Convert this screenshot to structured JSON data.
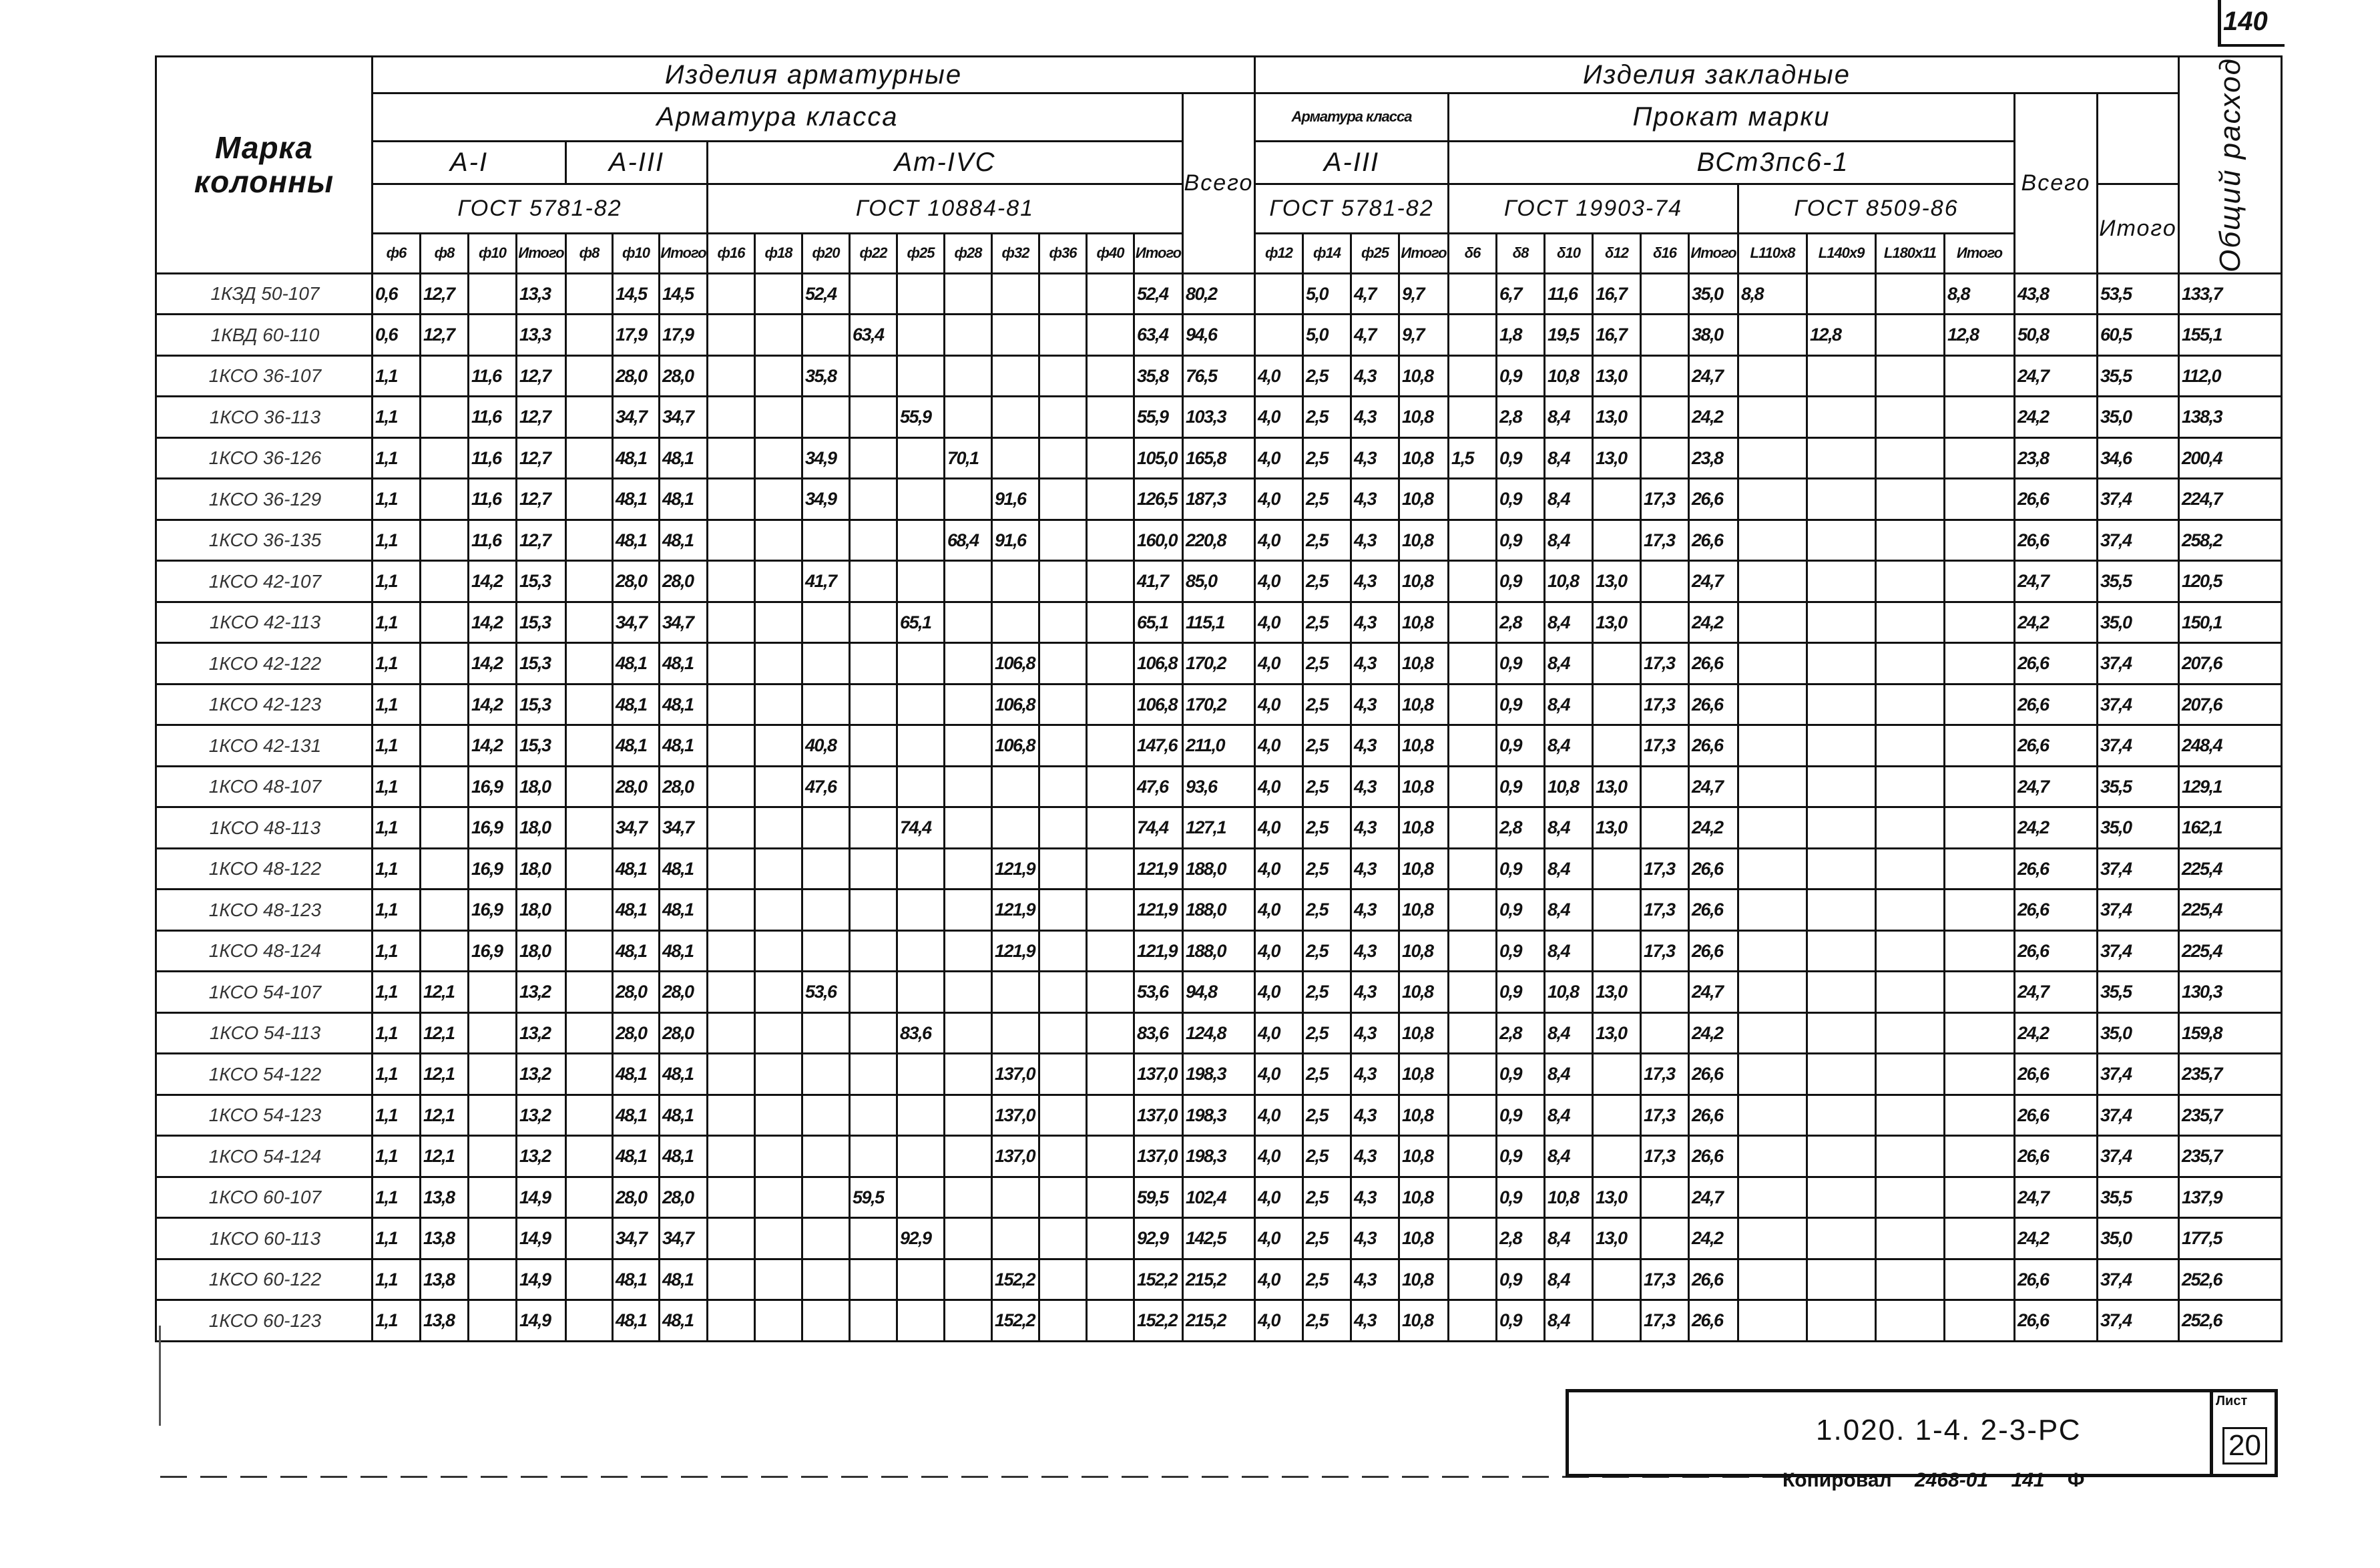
{
  "page_number": "140",
  "header": {
    "marka": "Марка колонны",
    "armature_items": "Изделия арматурные",
    "embedded_items": "Изделия закладные",
    "total_consumption": "Общий расход",
    "armature_class": "Арматура класса",
    "armature_class_emb": "Арматура класса",
    "rolled_steel_grade": "Прокат марки",
    "vsego": "Всего",
    "vsego_emb": "Всего",
    "class_a1": "А-I",
    "class_a3": "А-III",
    "class_at4c": "Ат-IVC",
    "class_a3_emb": "А-III",
    "steel": "ВСт3пс6-1",
    "gost_5781": "ГОСТ 5781-82",
    "gost_10884": "ГОСТ 10884-81",
    "gost_5781_emb": "ГОСТ 5781-82",
    "gost_19903": "ГОСТ 19903-74",
    "gost_8509": "ГОСТ 8509-86",
    "itogo_emb": "Итого",
    "sizes": [
      "ф6",
      "ф8",
      "ф10",
      "Итого",
      "ф8",
      "ф10",
      "Итого",
      "ф16",
      "ф18",
      "ф20",
      "ф22",
      "ф25",
      "ф28",
      "ф32",
      "ф36",
      "ф40",
      "Итого",
      "ф12",
      "ф14",
      "ф25",
      "Итого",
      "δ6",
      "δ8",
      "δ10",
      "δ12",
      "δ16",
      "Итого",
      "L110x8",
      "L140x9",
      "L180x11",
      "Итого"
    ]
  },
  "rows": [
    {
      "marka": "1КЗД 50-107",
      "v": [
        "0,6",
        "12,7",
        "",
        "13,3",
        "",
        "14,5",
        "14,5",
        "",
        "",
        "52,4",
        "",
        "",
        "",
        "",
        "",
        "",
        "52,4",
        "80,2",
        "",
        "5,0",
        "4,7",
        "9,7",
        "",
        "6,7",
        "11,6",
        "16,7",
        "",
        "35,0",
        "8,8",
        "",
        "",
        "8,8",
        "43,8",
        "53,5",
        "133,7"
      ]
    },
    {
      "marka": "1КВД 60-110",
      "v": [
        "0,6",
        "12,7",
        "",
        "13,3",
        "",
        "17,9",
        "17,9",
        "",
        "",
        "",
        "63,4",
        "",
        "",
        "",
        "",
        "",
        "63,4",
        "94,6",
        "",
        "5,0",
        "4,7",
        "9,7",
        "",
        "1,8",
        "19,5",
        "16,7",
        "",
        "38,0",
        "",
        "12,8",
        "",
        "12,8",
        "50,8",
        "60,5",
        "155,1"
      ]
    },
    {
      "marka": "1КСО 36-107",
      "v": [
        "1,1",
        "",
        "11,6",
        "12,7",
        "",
        "28,0",
        "28,0",
        "",
        "",
        "35,8",
        "",
        "",
        "",
        "",
        "",
        "",
        "35,8",
        "76,5",
        "4,0",
        "2,5",
        "4,3",
        "10,8",
        "",
        "0,9",
        "10,8",
        "13,0",
        "",
        "24,7",
        "",
        "",
        "",
        "",
        "24,7",
        "35,5",
        "112,0"
      ]
    },
    {
      "marka": "1КСО 36-113",
      "v": [
        "1,1",
        "",
        "11,6",
        "12,7",
        "",
        "34,7",
        "34,7",
        "",
        "",
        "",
        "",
        "55,9",
        "",
        "",
        "",
        "",
        "55,9",
        "103,3",
        "4,0",
        "2,5",
        "4,3",
        "10,8",
        "",
        "2,8",
        "8,4",
        "13,0",
        "",
        "24,2",
        "",
        "",
        "",
        "",
        "24,2",
        "35,0",
        "138,3"
      ]
    },
    {
      "marka": "1КСО 36-126",
      "v": [
        "1,1",
        "",
        "11,6",
        "12,7",
        "",
        "48,1",
        "48,1",
        "",
        "",
        "34,9",
        "",
        "",
        "70,1",
        "",
        "",
        "",
        "105,0",
        "165,8",
        "4,0",
        "2,5",
        "4,3",
        "10,8",
        "1,5",
        "0,9",
        "8,4",
        "13,0",
        "",
        "23,8",
        "",
        "",
        "",
        "",
        "23,8",
        "34,6",
        "200,4"
      ]
    },
    {
      "marka": "1КСО 36-129",
      "v": [
        "1,1",
        "",
        "11,6",
        "12,7",
        "",
        "48,1",
        "48,1",
        "",
        "",
        "34,9",
        "",
        "",
        "",
        "91,6",
        "",
        "",
        "126,5",
        "187,3",
        "4,0",
        "2,5",
        "4,3",
        "10,8",
        "",
        "0,9",
        "8,4",
        "",
        "17,3",
        "26,6",
        "",
        "",
        "",
        "",
        "26,6",
        "37,4",
        "224,7"
      ]
    },
    {
      "marka": "1КСО 36-135",
      "v": [
        "1,1",
        "",
        "11,6",
        "12,7",
        "",
        "48,1",
        "48,1",
        "",
        "",
        "",
        "",
        "",
        "68,4",
        "91,6",
        "",
        "",
        "160,0",
        "220,8",
        "4,0",
        "2,5",
        "4,3",
        "10,8",
        "",
        "0,9",
        "8,4",
        "",
        "17,3",
        "26,6",
        "",
        "",
        "",
        "",
        "26,6",
        "37,4",
        "258,2"
      ]
    },
    {
      "marka": "1КСО 42-107",
      "v": [
        "1,1",
        "",
        "14,2",
        "15,3",
        "",
        "28,0",
        "28,0",
        "",
        "",
        "41,7",
        "",
        "",
        "",
        "",
        "",
        "",
        "41,7",
        "85,0",
        "4,0",
        "2,5",
        "4,3",
        "10,8",
        "",
        "0,9",
        "10,8",
        "13,0",
        "",
        "24,7",
        "",
        "",
        "",
        "",
        "24,7",
        "35,5",
        "120,5"
      ]
    },
    {
      "marka": "1КСО 42-113",
      "v": [
        "1,1",
        "",
        "14,2",
        "15,3",
        "",
        "34,7",
        "34,7",
        "",
        "",
        "",
        "",
        "65,1",
        "",
        "",
        "",
        "",
        "65,1",
        "115,1",
        "4,0",
        "2,5",
        "4,3",
        "10,8",
        "",
        "2,8",
        "8,4",
        "13,0",
        "",
        "24,2",
        "",
        "",
        "",
        "",
        "24,2",
        "35,0",
        "150,1"
      ]
    },
    {
      "marka": "1КСО 42-122",
      "v": [
        "1,1",
        "",
        "14,2",
        "15,3",
        "",
        "48,1",
        "48,1",
        "",
        "",
        "",
        "",
        "",
        "",
        "106,8",
        "",
        "",
        "106,8",
        "170,2",
        "4,0",
        "2,5",
        "4,3",
        "10,8",
        "",
        "0,9",
        "8,4",
        "",
        "17,3",
        "26,6",
        "",
        "",
        "",
        "",
        "26,6",
        "37,4",
        "207,6"
      ]
    },
    {
      "marka": "1КСО 42-123",
      "v": [
        "1,1",
        "",
        "14,2",
        "15,3",
        "",
        "48,1",
        "48,1",
        "",
        "",
        "",
        "",
        "",
        "",
        "106,8",
        "",
        "",
        "106,8",
        "170,2",
        "4,0",
        "2,5",
        "4,3",
        "10,8",
        "",
        "0,9",
        "8,4",
        "",
        "17,3",
        "26,6",
        "",
        "",
        "",
        "",
        "26,6",
        "37,4",
        "207,6"
      ]
    },
    {
      "marka": "1КСО 42-131",
      "v": [
        "1,1",
        "",
        "14,2",
        "15,3",
        "",
        "48,1",
        "48,1",
        "",
        "",
        "40,8",
        "",
        "",
        "",
        "106,8",
        "",
        "",
        "147,6",
        "211,0",
        "4,0",
        "2,5",
        "4,3",
        "10,8",
        "",
        "0,9",
        "8,4",
        "",
        "17,3",
        "26,6",
        "",
        "",
        "",
        "",
        "26,6",
        "37,4",
        "248,4"
      ]
    },
    {
      "marka": "1КСО 48-107",
      "v": [
        "1,1",
        "",
        "16,9",
        "18,0",
        "",
        "28,0",
        "28,0",
        "",
        "",
        "47,6",
        "",
        "",
        "",
        "",
        "",
        "",
        "47,6",
        "93,6",
        "4,0",
        "2,5",
        "4,3",
        "10,8",
        "",
        "0,9",
        "10,8",
        "13,0",
        "",
        "24,7",
        "",
        "",
        "",
        "",
        "24,7",
        "35,5",
        "129,1"
      ]
    },
    {
      "marka": "1КСО 48-113",
      "v": [
        "1,1",
        "",
        "16,9",
        "18,0",
        "",
        "34,7",
        "34,7",
        "",
        "",
        "",
        "",
        "74,4",
        "",
        "",
        "",
        "",
        "74,4",
        "127,1",
        "4,0",
        "2,5",
        "4,3",
        "10,8",
        "",
        "2,8",
        "8,4",
        "13,0",
        "",
        "24,2",
        "",
        "",
        "",
        "",
        "24,2",
        "35,0",
        "162,1"
      ]
    },
    {
      "marka": "1КСО 48-122",
      "v": [
        "1,1",
        "",
        "16,9",
        "18,0",
        "",
        "48,1",
        "48,1",
        "",
        "",
        "",
        "",
        "",
        "",
        "121,9",
        "",
        "",
        "121,9",
        "188,0",
        "4,0",
        "2,5",
        "4,3",
        "10,8",
        "",
        "0,9",
        "8,4",
        "",
        "17,3",
        "26,6",
        "",
        "",
        "",
        "",
        "26,6",
        "37,4",
        "225,4"
      ]
    },
    {
      "marka": "1КСО 48-123",
      "v": [
        "1,1",
        "",
        "16,9",
        "18,0",
        "",
        "48,1",
        "48,1",
        "",
        "",
        "",
        "",
        "",
        "",
        "121,9",
        "",
        "",
        "121,9",
        "188,0",
        "4,0",
        "2,5",
        "4,3",
        "10,8",
        "",
        "0,9",
        "8,4",
        "",
        "17,3",
        "26,6",
        "",
        "",
        "",
        "",
        "26,6",
        "37,4",
        "225,4"
      ]
    },
    {
      "marka": "1КСО 48-124",
      "v": [
        "1,1",
        "",
        "16,9",
        "18,0",
        "",
        "48,1",
        "48,1",
        "",
        "",
        "",
        "",
        "",
        "",
        "121,9",
        "",
        "",
        "121,9",
        "188,0",
        "4,0",
        "2,5",
        "4,3",
        "10,8",
        "",
        "0,9",
        "8,4",
        "",
        "17,3",
        "26,6",
        "",
        "",
        "",
        "",
        "26,6",
        "37,4",
        "225,4"
      ]
    },
    {
      "marka": "1КСО 54-107",
      "v": [
        "1,1",
        "12,1",
        "",
        "13,2",
        "",
        "28,0",
        "28,0",
        "",
        "",
        "53,6",
        "",
        "",
        "",
        "",
        "",
        "",
        "53,6",
        "94,8",
        "4,0",
        "2,5",
        "4,3",
        "10,8",
        "",
        "0,9",
        "10,8",
        "13,0",
        "",
        "24,7",
        "",
        "",
        "",
        "",
        "24,7",
        "35,5",
        "130,3"
      ]
    },
    {
      "marka": "1КСО 54-113",
      "v": [
        "1,1",
        "12,1",
        "",
        "13,2",
        "",
        "28,0",
        "28,0",
        "",
        "",
        "",
        "",
        "83,6",
        "",
        "",
        "",
        "",
        "83,6",
        "124,8",
        "4,0",
        "2,5",
        "4,3",
        "10,8",
        "",
        "2,8",
        "8,4",
        "13,0",
        "",
        "24,2",
        "",
        "",
        "",
        "",
        "24,2",
        "35,0",
        "159,8"
      ]
    },
    {
      "marka": "1КСО 54-122",
      "v": [
        "1,1",
        "12,1",
        "",
        "13,2",
        "",
        "48,1",
        "48,1",
        "",
        "",
        "",
        "",
        "",
        "",
        "137,0",
        "",
        "",
        "137,0",
        "198,3",
        "4,0",
        "2,5",
        "4,3",
        "10,8",
        "",
        "0,9",
        "8,4",
        "",
        "17,3",
        "26,6",
        "",
        "",
        "",
        "",
        "26,6",
        "37,4",
        "235,7"
      ]
    },
    {
      "marka": "1КСО 54-123",
      "v": [
        "1,1",
        "12,1",
        "",
        "13,2",
        "",
        "48,1",
        "48,1",
        "",
        "",
        "",
        "",
        "",
        "",
        "137,0",
        "",
        "",
        "137,0",
        "198,3",
        "4,0",
        "2,5",
        "4,3",
        "10,8",
        "",
        "0,9",
        "8,4",
        "",
        "17,3",
        "26,6",
        "",
        "",
        "",
        "",
        "26,6",
        "37,4",
        "235,7"
      ]
    },
    {
      "marka": "1КСО 54-124",
      "v": [
        "1,1",
        "12,1",
        "",
        "13,2",
        "",
        "48,1",
        "48,1",
        "",
        "",
        "",
        "",
        "",
        "",
        "137,0",
        "",
        "",
        "137,0",
        "198,3",
        "4,0",
        "2,5",
        "4,3",
        "10,8",
        "",
        "0,9",
        "8,4",
        "",
        "17,3",
        "26,6",
        "",
        "",
        "",
        "",
        "26,6",
        "37,4",
        "235,7"
      ]
    },
    {
      "marka": "1КСО 60-107",
      "v": [
        "1,1",
        "13,8",
        "",
        "14,9",
        "",
        "28,0",
        "28,0",
        "",
        "",
        "",
        "59,5",
        "",
        "",
        "",
        "",
        "",
        "59,5",
        "102,4",
        "4,0",
        "2,5",
        "4,3",
        "10,8",
        "",
        "0,9",
        "10,8",
        "13,0",
        "",
        "24,7",
        "",
        "",
        "",
        "",
        "24,7",
        "35,5",
        "137,9"
      ]
    },
    {
      "marka": "1КСО 60-113",
      "v": [
        "1,1",
        "13,8",
        "",
        "14,9",
        "",
        "34,7",
        "34,7",
        "",
        "",
        "",
        "",
        "92,9",
        "",
        "",
        "",
        "",
        "92,9",
        "142,5",
        "4,0",
        "2,5",
        "4,3",
        "10,8",
        "",
        "2,8",
        "8,4",
        "13,0",
        "",
        "24,2",
        "",
        "",
        "",
        "",
        "24,2",
        "35,0",
        "177,5"
      ]
    },
    {
      "marka": "1КСО 60-122",
      "v": [
        "1,1",
        "13,8",
        "",
        "14,9",
        "",
        "48,1",
        "48,1",
        "",
        "",
        "",
        "",
        "",
        "",
        "152,2",
        "",
        "",
        "152,2",
        "215,2",
        "4,0",
        "2,5",
        "4,3",
        "10,8",
        "",
        "0,9",
        "8,4",
        "",
        "17,3",
        "26,6",
        "",
        "",
        "",
        "",
        "26,6",
        "37,4",
        "252,6"
      ]
    },
    {
      "marka": "1КСО 60-123",
      "v": [
        "1,1",
        "13,8",
        "",
        "14,9",
        "",
        "48,1",
        "48,1",
        "",
        "",
        "",
        "",
        "",
        "",
        "152,2",
        "",
        "",
        "152,2",
        "215,2",
        "4,0",
        "2,5",
        "4,3",
        "10,8",
        "",
        "0,9",
        "8,4",
        "",
        "17,3",
        "26,6",
        "",
        "",
        "",
        "",
        "26,6",
        "37,4",
        "252,6"
      ]
    }
  ],
  "stamp": {
    "code": "1.020. 1-4. 2-3-РС",
    "sheet_label": "Лист",
    "sheet_value": "20"
  },
  "footer": {
    "copied_label": "Копировал",
    "copied_number": "2468-01",
    "format_number": "141",
    "format_letter": "Ф"
  }
}
